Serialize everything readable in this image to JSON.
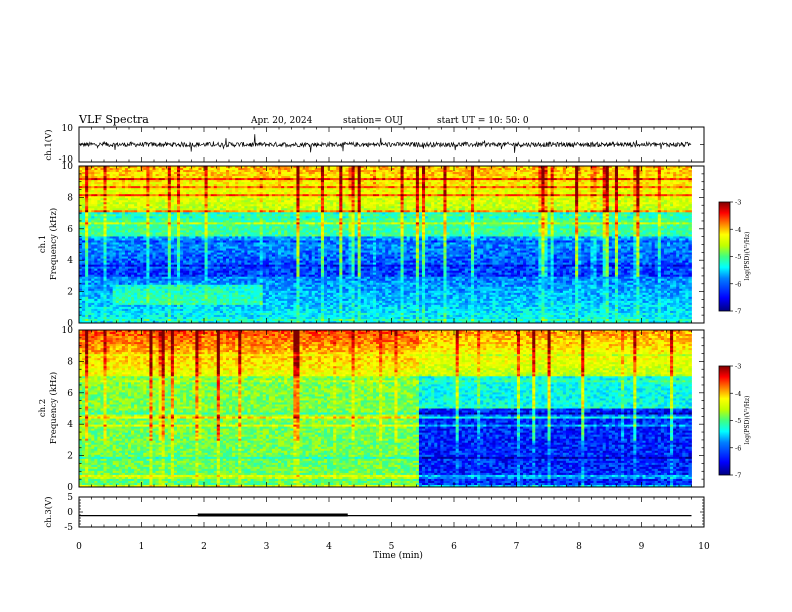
{
  "header": {
    "title": "VLF Spectra",
    "date": "Apr. 20, 2024",
    "station": "station= OUJ",
    "start": "start  UT  =   10: 50: 0"
  },
  "colors": {
    "colormap": [
      "#00007f",
      "#0000ff",
      "#0080ff",
      "#00ffff",
      "#40ff80",
      "#c0ff00",
      "#ffff00",
      "#ff8000",
      "#ff0000",
      "#7f0000"
    ],
    "trace": "#000000"
  },
  "chart_data": [
    {
      "id": "ch1-waveform",
      "type": "line",
      "ylabel": "ch.1(V)",
      "ylim": [
        -10,
        10
      ],
      "yticks": [
        "10",
        "-10"
      ],
      "x": [
        0,
        1,
        2,
        3,
        4,
        5,
        6,
        7,
        8,
        9,
        9.8
      ],
      "values": [
        0,
        0,
        0,
        0,
        0,
        0,
        0,
        0,
        0,
        0,
        0
      ],
      "note_amplitude_v": 3
    },
    {
      "id": "ch1-spectrogram",
      "type": "heatmap",
      "ylabel": "ch.1\nFrequency (kHz)",
      "ylim": [
        0,
        10
      ],
      "yticks": [
        "10",
        "8",
        "6",
        "4",
        "2",
        "0"
      ],
      "x_range_min": [
        0,
        9.8
      ],
      "colorbar": {
        "label": "log(PSD)(V²/Hz)",
        "range": [
          -7,
          -3
        ],
        "ticks": [
          "-3",
          "-4",
          "-5",
          "-6",
          "-7"
        ]
      }
    },
    {
      "id": "ch2-spectrogram",
      "type": "heatmap",
      "ylabel": "ch.2\nFrequency (kHz)",
      "ylim": [
        0,
        10
      ],
      "yticks": [
        "10",
        "8",
        "6",
        "4",
        "2",
        "0"
      ],
      "x_range_min": [
        0,
        9.8
      ],
      "transition_min": 5.4,
      "colorbar": {
        "label": "log(PSD)(V²/Hz)",
        "range": [
          -7,
          -3
        ],
        "ticks": [
          "-3",
          "-4",
          "-5",
          "-6",
          "-7"
        ]
      }
    },
    {
      "id": "ch3-trace",
      "type": "line",
      "ylabel": "ch.3(V)",
      "ylim": [
        -5,
        5
      ],
      "yticks": [
        "5",
        "0",
        "-5"
      ],
      "x": [
        0,
        1.9,
        1.9,
        4.3,
        4.3,
        9.8
      ],
      "values": [
        -1.2,
        -1.2,
        -1.0,
        -1.0,
        -1.2,
        -1.2
      ],
      "xlabel": "Time (min)",
      "xlim": [
        0,
        10
      ],
      "xticks": [
        "0",
        "1",
        "2",
        "3",
        "4",
        "5",
        "6",
        "7",
        "8",
        "9",
        "10"
      ]
    }
  ]
}
